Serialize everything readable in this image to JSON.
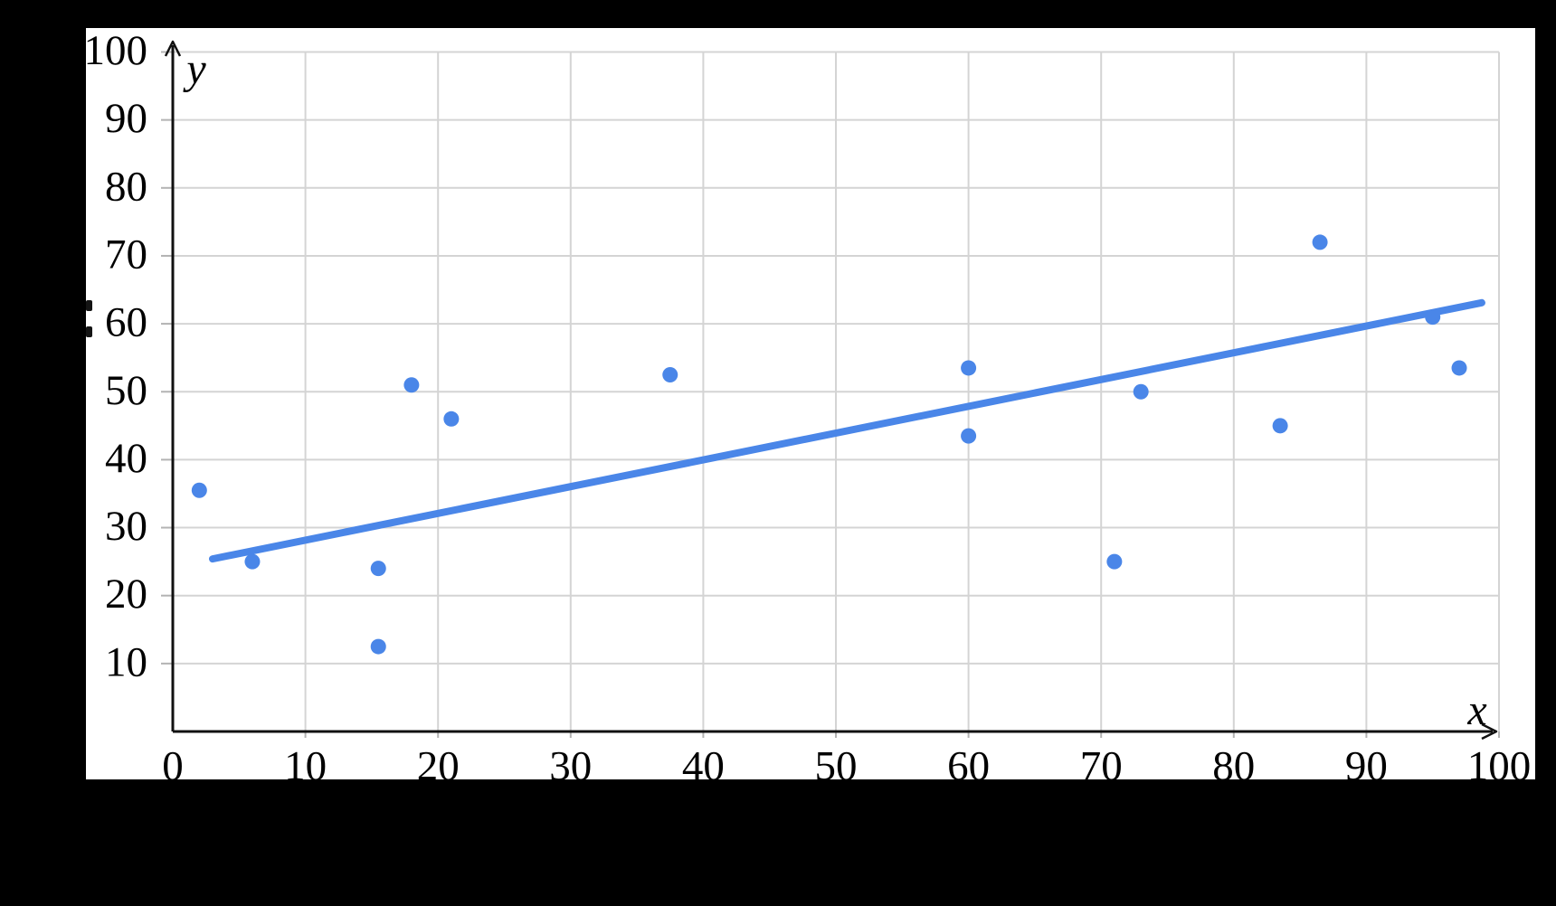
{
  "chart_data": {
    "type": "scatter",
    "title": "",
    "xlabel": "x",
    "ylabel": "y",
    "xlim": [
      0,
      100
    ],
    "ylim": [
      0,
      100
    ],
    "grid": true,
    "legend": false,
    "x_tick_labels": [
      "0",
      "10",
      "20",
      "30",
      "40",
      "50",
      "60",
      "70",
      "80",
      "90",
      "100"
    ],
    "y_tick_labels": [
      "10",
      "20",
      "30",
      "40",
      "50",
      "60",
      "70",
      "80",
      "90",
      "100"
    ],
    "points": [
      {
        "x": 2,
        "y": 35.5
      },
      {
        "x": 6,
        "y": 25
      },
      {
        "x": 15.5,
        "y": 24
      },
      {
        "x": 15.5,
        "y": 12.5
      },
      {
        "x": 18,
        "y": 51
      },
      {
        "x": 21,
        "y": 46
      },
      {
        "x": 37.5,
        "y": 52.5
      },
      {
        "x": 60,
        "y": 53.5
      },
      {
        "x": 60,
        "y": 43.5
      },
      {
        "x": 71,
        "y": 25
      },
      {
        "x": 73,
        "y": 50
      },
      {
        "x": 83.5,
        "y": 45
      },
      {
        "x": 86.5,
        "y": 72
      },
      {
        "x": 95,
        "y": 61
      },
      {
        "x": 97,
        "y": 53.5
      }
    ],
    "trendline": {
      "kind": "linear-fit-line",
      "x_start": 3,
      "y_start": 25.4,
      "x_end": 98.7,
      "y_end": 63.1
    }
  },
  "colors": {
    "background": "#000000",
    "plot_background": "#ffffff",
    "points": "#4a86e8",
    "trendline": "#4a86e8",
    "gridline": "#d4d4d4",
    "tick": "#b3b3b3",
    "axis": "#111111",
    "label_text": "#000000"
  }
}
